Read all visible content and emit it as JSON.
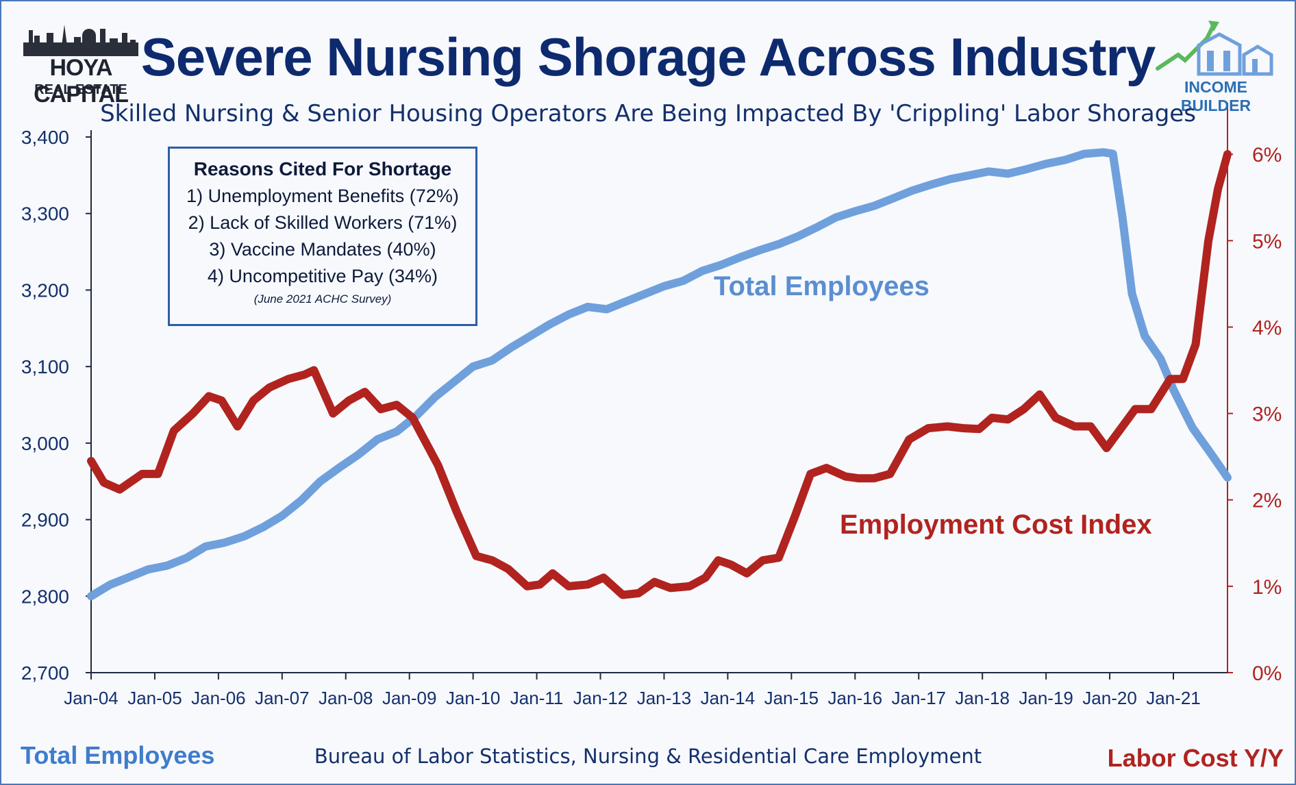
{
  "header": {
    "title": "Severe Nursing Shorage Across Industry",
    "subtitle": "Skilled Nursing & Senior Housing Operators Are Being Impacted By 'Crippling' Labor Shorages"
  },
  "logos": {
    "left": {
      "name": "HOYA CAPITAL",
      "sub": "REAL ESTATE"
    },
    "right": {
      "name": "INCOME BUILDER"
    }
  },
  "reasons_box": {
    "heading": "Reasons Cited For Shortage",
    "items": [
      "1) Unemployment Benefits (72%)",
      "2) Lack of Skilled Workers (71%)",
      "3) Vaccine Mandates (40%)",
      "4) Uncompetitive Pay (34%)"
    ],
    "source": "(June 2021 ACHC Survey)"
  },
  "footer": {
    "left": "Total Employees",
    "center": "Bureau of Labor Statistics, Nursing & Residential Care Employment",
    "right": "Labor Cost Y/Y"
  },
  "colors": {
    "blue_series": "#6fa0dc",
    "red_series": "#b1231f",
    "title": "#0e2a6e",
    "axis_left": "#1f2a44",
    "axis_right": "#b1231f"
  },
  "chart_data": {
    "type": "line",
    "title": "Severe Nursing Shorage Across Industry",
    "subtitle": "Skilled Nursing & Senior Housing Operators Are Being Impacted By 'Crippling' Labor Shorages",
    "xlabel": "",
    "x_tick_labels": [
      "Jan-04",
      "Jan-05",
      "Jan-06",
      "Jan-07",
      "Jan-08",
      "Jan-09",
      "Jan-10",
      "Jan-11",
      "Jan-12",
      "Jan-13",
      "Jan-14",
      "Jan-15",
      "Jan-16",
      "Jan-17",
      "Jan-18",
      "Jan-19",
      "Jan-20",
      "Jan-21"
    ],
    "x_range": [
      2004.0,
      2021.85
    ],
    "y_left": {
      "label": "Total Employees",
      "ylim": [
        2700,
        3400
      ],
      "ticks": [
        "3,400",
        "3,300",
        "3,200",
        "3,100",
        "3,000",
        "2,900",
        "2,800",
        "2,700"
      ],
      "tick_values": [
        3400,
        3300,
        3200,
        3100,
        3000,
        2900,
        2800,
        2700
      ]
    },
    "y_right": {
      "label": "Labor Cost Y/Y",
      "ylim": [
        0,
        6.2
      ],
      "ticks": [
        "6%",
        "5%",
        "4%",
        "3%",
        "2%",
        "1%",
        "0%"
      ],
      "tick_values": [
        6,
        5,
        4,
        3,
        2,
        1,
        0
      ]
    },
    "grid": false,
    "series": [
      {
        "name": "Total Employees",
        "axis": "left",
        "points": [
          [
            2004.0,
            2800
          ],
          [
            2004.3,
            2815
          ],
          [
            2004.6,
            2825
          ],
          [
            2004.9,
            2835
          ],
          [
            2005.2,
            2840
          ],
          [
            2005.5,
            2850
          ],
          [
            2005.8,
            2865
          ],
          [
            2006.1,
            2870
          ],
          [
            2006.4,
            2878
          ],
          [
            2006.7,
            2890
          ],
          [
            2007.0,
            2905
          ],
          [
            2007.3,
            2925
          ],
          [
            2007.6,
            2950
          ],
          [
            2007.9,
            2968
          ],
          [
            2008.2,
            2985
          ],
          [
            2008.5,
            3005
          ],
          [
            2008.8,
            3015
          ],
          [
            2009.1,
            3035
          ],
          [
            2009.4,
            3060
          ],
          [
            2009.7,
            3080
          ],
          [
            2010.0,
            3100
          ],
          [
            2010.3,
            3108
          ],
          [
            2010.6,
            3125
          ],
          [
            2010.9,
            3140
          ],
          [
            2011.2,
            3155
          ],
          [
            2011.5,
            3168
          ],
          [
            2011.8,
            3178
          ],
          [
            2012.1,
            3175
          ],
          [
            2012.4,
            3185
          ],
          [
            2012.7,
            3195
          ],
          [
            2013.0,
            3205
          ],
          [
            2013.3,
            3212
          ],
          [
            2013.6,
            3225
          ],
          [
            2013.9,
            3233
          ],
          [
            2014.2,
            3243
          ],
          [
            2014.5,
            3252
          ],
          [
            2014.8,
            3260
          ],
          [
            2015.1,
            3270
          ],
          [
            2015.4,
            3282
          ],
          [
            2015.7,
            3295
          ],
          [
            2016.0,
            3303
          ],
          [
            2016.3,
            3310
          ],
          [
            2016.6,
            3320
          ],
          [
            2016.9,
            3330
          ],
          [
            2017.2,
            3338
          ],
          [
            2017.5,
            3345
          ],
          [
            2017.8,
            3350
          ],
          [
            2018.1,
            3355
          ],
          [
            2018.4,
            3352
          ],
          [
            2018.7,
            3358
          ],
          [
            2019.0,
            3365
          ],
          [
            2019.3,
            3370
          ],
          [
            2019.6,
            3378
          ],
          [
            2019.9,
            3380
          ],
          [
            2020.05,
            3378
          ],
          [
            2020.2,
            3295
          ],
          [
            2020.35,
            3195
          ],
          [
            2020.55,
            3140
          ],
          [
            2020.8,
            3110
          ],
          [
            2021.0,
            3070
          ],
          [
            2021.3,
            3020
          ],
          [
            2021.6,
            2985
          ],
          [
            2021.85,
            2955
          ]
        ]
      },
      {
        "name": "Employment Cost Index",
        "axis": "right",
        "points": [
          [
            2004.0,
            2.45
          ],
          [
            2004.2,
            2.2
          ],
          [
            2004.45,
            2.12
          ],
          [
            2004.8,
            2.3
          ],
          [
            2005.05,
            2.3
          ],
          [
            2005.3,
            2.8
          ],
          [
            2005.6,
            3.0
          ],
          [
            2005.85,
            3.2
          ],
          [
            2006.05,
            3.15
          ],
          [
            2006.3,
            2.85
          ],
          [
            2006.55,
            3.15
          ],
          [
            2006.8,
            3.3
          ],
          [
            2007.1,
            3.4
          ],
          [
            2007.35,
            3.45
          ],
          [
            2007.5,
            3.5
          ],
          [
            2007.8,
            3.0
          ],
          [
            2008.05,
            3.15
          ],
          [
            2008.3,
            3.25
          ],
          [
            2008.55,
            3.05
          ],
          [
            2008.8,
            3.1
          ],
          [
            2009.05,
            2.95
          ],
          [
            2009.45,
            2.4
          ],
          [
            2009.75,
            1.85
          ],
          [
            2010.05,
            1.35
          ],
          [
            2010.3,
            1.3
          ],
          [
            2010.55,
            1.2
          ],
          [
            2010.85,
            1.0
          ],
          [
            2011.05,
            1.02
          ],
          [
            2011.25,
            1.15
          ],
          [
            2011.5,
            1.0
          ],
          [
            2011.8,
            1.02
          ],
          [
            2012.05,
            1.1
          ],
          [
            2012.35,
            0.9
          ],
          [
            2012.6,
            0.92
          ],
          [
            2012.85,
            1.05
          ],
          [
            2013.1,
            0.98
          ],
          [
            2013.4,
            1.0
          ],
          [
            2013.65,
            1.1
          ],
          [
            2013.85,
            1.3
          ],
          [
            2014.05,
            1.25
          ],
          [
            2014.3,
            1.15
          ],
          [
            2014.55,
            1.3
          ],
          [
            2014.8,
            1.33
          ],
          [
            2015.05,
            1.8
          ],
          [
            2015.3,
            2.3
          ],
          [
            2015.55,
            2.37
          ],
          [
            2015.85,
            2.27
          ],
          [
            2016.05,
            2.25
          ],
          [
            2016.3,
            2.25
          ],
          [
            2016.55,
            2.3
          ],
          [
            2016.85,
            2.7
          ],
          [
            2017.15,
            2.83
          ],
          [
            2017.45,
            2.85
          ],
          [
            2017.7,
            2.83
          ],
          [
            2017.95,
            2.82
          ],
          [
            2018.15,
            2.95
          ],
          [
            2018.4,
            2.93
          ],
          [
            2018.65,
            3.05
          ],
          [
            2018.9,
            3.22
          ],
          [
            2019.15,
            2.95
          ],
          [
            2019.45,
            2.85
          ],
          [
            2019.7,
            2.85
          ],
          [
            2019.95,
            2.6
          ],
          [
            2020.15,
            2.8
          ],
          [
            2020.4,
            3.05
          ],
          [
            2020.65,
            3.05
          ],
          [
            2020.95,
            3.4
          ],
          [
            2021.15,
            3.4
          ],
          [
            2021.35,
            3.8
          ],
          [
            2021.55,
            5.0
          ],
          [
            2021.7,
            5.6
          ],
          [
            2021.85,
            6.0
          ]
        ]
      }
    ],
    "annotations": [
      "Total Employees",
      "Employment Cost Index"
    ]
  }
}
